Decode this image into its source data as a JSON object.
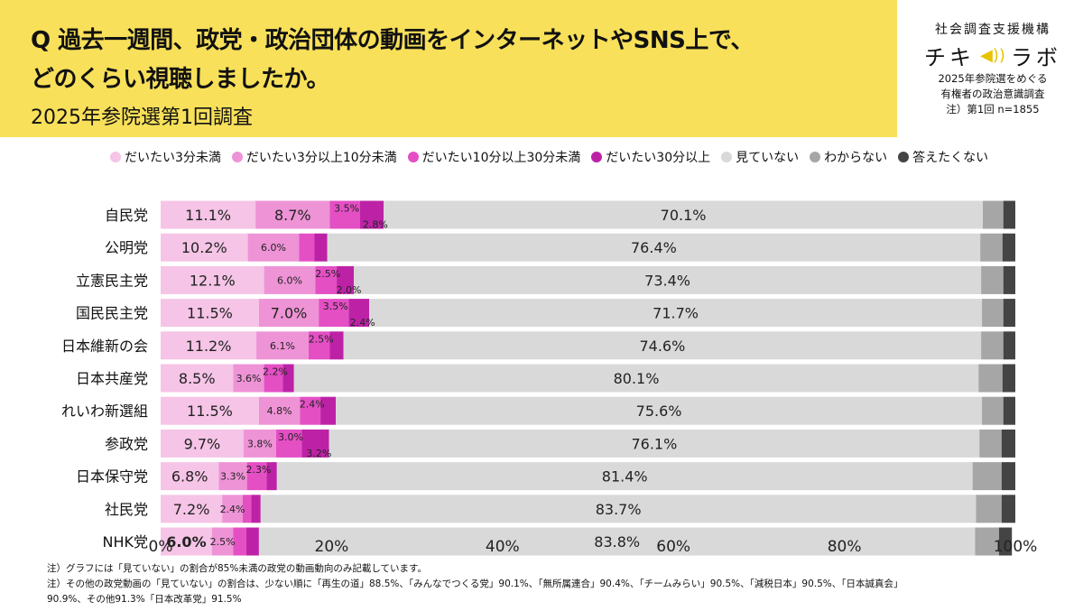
{
  "header": {
    "title_line1": "Q 過去一週間、政党・政治団体の動画をインターネットやSNS上で、",
    "title_line2": "どのくらい視聴しましたか。",
    "subtitle": "2025年参院選第1回調査"
  },
  "org": {
    "name": "社会調査支援機構",
    "logo_left": "チキ",
    "logo_right": "ラボ",
    "line1": "2025年参院選をめぐる",
    "line2": "有権者の政治意識調査",
    "line3": "注）第1回 n=1855"
  },
  "colors": {
    "banner": "#f8e05a",
    "seg1": "#f5c4e6",
    "seg2": "#ee93d6",
    "seg3": "#e44fc4",
    "seg4": "#bd22a6",
    "seg5": "#d9d9d9",
    "seg6": "#a6a6a6",
    "seg7": "#444444"
  },
  "chart_data": {
    "type": "bar",
    "orientation": "horizontal",
    "stacked": true,
    "xlim": [
      0,
      100
    ],
    "x_ticks": [
      "0%",
      "20%",
      "40%",
      "60%",
      "80%",
      "100%"
    ],
    "legend_position": "top",
    "categories": [
      "自民党",
      "公明党",
      "立憲民主党",
      "国民民主党",
      "日本維新の会",
      "日本共産党",
      "れいわ新選組",
      "参政党",
      "日本保守党",
      "社民党",
      "NHK党"
    ],
    "series": [
      {
        "name": "だいたい3分未満",
        "color": "#f5c4e6",
        "values": [
          11.1,
          10.2,
          12.1,
          11.5,
          11.2,
          8.5,
          11.5,
          9.7,
          6.8,
          7.2,
          6.0
        ]
      },
      {
        "name": "だいたい3分以上10分未満",
        "color": "#ee93d6",
        "values": [
          8.7,
          6.0,
          6.0,
          7.0,
          6.1,
          3.6,
          4.8,
          3.8,
          3.3,
          2.4,
          2.5
        ]
      },
      {
        "name": "だいたい10分以上30分未満",
        "color": "#e44fc4",
        "values": [
          3.5,
          1.8,
          2.5,
          3.5,
          2.5,
          2.2,
          2.4,
          3.0,
          2.3,
          1.0,
          1.5
        ]
      },
      {
        "name": "だいたい30分以上",
        "color": "#bd22a6",
        "values": [
          2.8,
          1.5,
          2.0,
          2.4,
          1.6,
          1.3,
          1.8,
          3.2,
          1.2,
          1.1,
          1.5
        ]
      },
      {
        "name": "見ていない",
        "color": "#d9d9d9",
        "values": [
          70.1,
          76.4,
          73.4,
          71.7,
          74.6,
          80.1,
          75.6,
          76.1,
          81.4,
          83.7,
          83.8
        ]
      },
      {
        "name": "わからない",
        "color": "#a6a6a6",
        "values": [
          2.4,
          2.6,
          2.6,
          2.5,
          2.6,
          2.8,
          2.5,
          2.6,
          3.4,
          3.0,
          2.8
        ]
      },
      {
        "name": "答えたくない",
        "color": "#444444",
        "values": [
          1.4,
          1.5,
          1.4,
          1.4,
          1.4,
          1.5,
          1.4,
          1.6,
          1.6,
          1.6,
          1.5
        ]
      }
    ],
    "data_labels": [
      [
        "11.1%",
        "8.7%",
        "3.5%",
        "2.8%",
        "70.1%"
      ],
      [
        "10.2%",
        "6.0%",
        "",
        "",
        "76.4%"
      ],
      [
        "12.1%",
        "6.0%",
        "2.5%",
        "2.0%",
        "73.4%"
      ],
      [
        "11.5%",
        "7.0%",
        "3.5%",
        "2.4%",
        "71.7%"
      ],
      [
        "11.2%",
        "6.1%",
        "2.5%",
        "",
        "74.6%"
      ],
      [
        "8.5%",
        "3.6%",
        "2.2%",
        "",
        "80.1%"
      ],
      [
        "11.5%",
        "4.8%",
        "2.4%",
        "",
        "75.6%"
      ],
      [
        "9.7%",
        "3.8%",
        "3.0%",
        "3.2%",
        "76.1%"
      ],
      [
        "6.8%",
        "3.3%",
        "2.3%",
        "",
        "81.4%"
      ],
      [
        "7.2%",
        "2.4%",
        "",
        "",
        "83.7%"
      ],
      [
        "6.0%",
        "2.5%",
        "",
        "",
        "83.8%"
      ]
    ]
  },
  "notes": {
    "note1": "注）グラフには「見ていない」の割合が85%未満の政党の動画動向のみ記載しています。",
    "note2": "注）その他の政党動画の「見ていない」の割合は、少ない順に「再生の道」88.5%、「みんなでつくる党」90.1%、「無所属連合」90.4%、「チームみらい」90.5%、「減税日本」90.5%、「日本誠真会」",
    "note3": "90.9%、その他91.3%「日本改革党」91.5%"
  }
}
